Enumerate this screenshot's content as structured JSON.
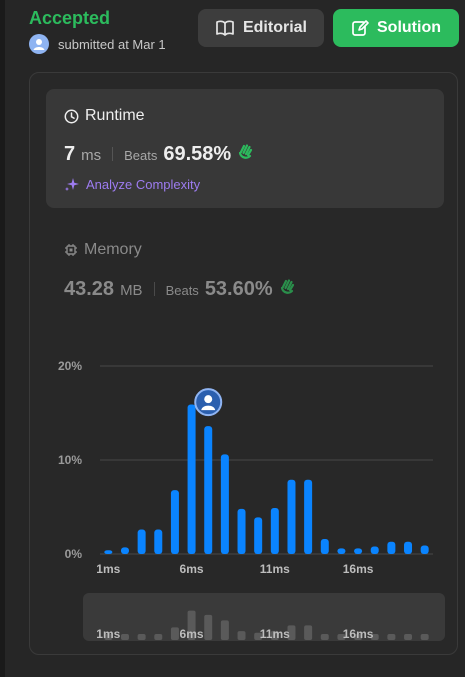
{
  "header": {
    "status": "Accepted",
    "submitted_text": "submitted at Mar 1",
    "editorial_label": "Editorial",
    "solution_label": "Solution"
  },
  "runtime": {
    "title": "Runtime",
    "value": "7",
    "unit": "ms",
    "beats_label": "Beats",
    "beats_pct": "69.58%",
    "analyze_label": "Analyze Complexity"
  },
  "memory": {
    "title": "Memory",
    "value": "43.28",
    "unit": "MB",
    "beats_label": "Beats",
    "beats_pct": "53.60%"
  },
  "colors": {
    "accent_green": "#2cbb5d",
    "bar_blue": "#0a84ff",
    "mini_bar": "#5a5a5a",
    "analyze_purple": "#9d7cf0"
  },
  "chart_data": {
    "type": "bar",
    "unit": "ms",
    "categories": [
      1,
      2,
      3,
      4,
      5,
      6,
      7,
      8,
      9,
      10,
      11,
      12,
      13,
      14,
      15,
      16,
      17,
      18,
      19,
      20
    ],
    "values": [
      0.4,
      0.7,
      2.6,
      2.6,
      6.8,
      15.9,
      13.6,
      10.6,
      4.8,
      3.9,
      4.9,
      7.9,
      7.9,
      1.6,
      0.6,
      0.6,
      0.8,
      1.3,
      1.3,
      0.9
    ],
    "highlight_index": 6,
    "ylim": [
      0,
      20
    ],
    "yticks": [
      "20%",
      "10%",
      "0%"
    ],
    "xticks": [
      "1ms",
      "6ms",
      "11ms",
      "16ms"
    ],
    "grid": true
  },
  "mini_chart": {
    "xticks": [
      "1ms",
      "6ms",
      "11ms",
      "16ms"
    ]
  }
}
